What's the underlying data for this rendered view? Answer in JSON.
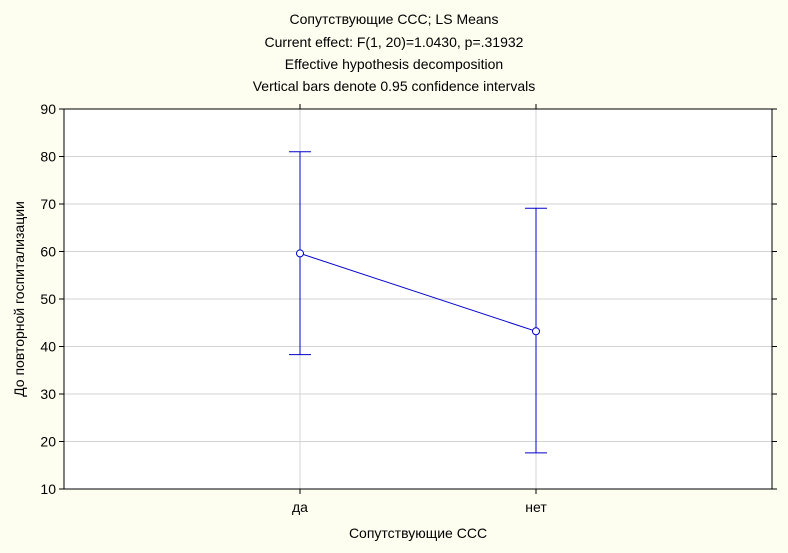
{
  "chart_data": {
    "type": "line",
    "title_lines": [
      "Сопутствующие ССС; LS Means",
      "Current effect: F(1, 20)=1.0430, p=.31932",
      "Effective hypothesis decomposition",
      "Vertical bars denote 0.95 confidence intervals"
    ],
    "xlabel": "Сопутствующие ССС",
    "ylabel": "До повторной госпитализации",
    "categories": [
      "да",
      "нет"
    ],
    "series": [
      {
        "means": [
          59.6,
          43.2
        ],
        "ci_lower": [
          38.3,
          17.6
        ],
        "ci_upper": [
          81.0,
          69.1
        ]
      }
    ],
    "ylim": [
      10,
      90
    ],
    "yticks": [
      10,
      20,
      30,
      40,
      50,
      60,
      70,
      80,
      90
    ],
    "grid": true,
    "colors": {
      "background": "#fdfdf0",
      "plot_area": "#ffffff",
      "grid": "#d3d3d3",
      "series": "#0000cc",
      "axis": "#000000"
    }
  }
}
